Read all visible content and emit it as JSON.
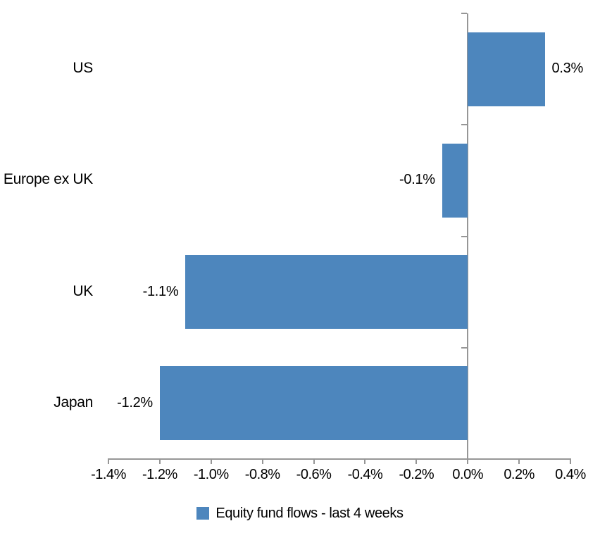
{
  "chart_data": {
    "type": "bar",
    "orientation": "horizontal",
    "title": "",
    "categories": [
      "US",
      "Europe ex UK",
      "UK",
      "Japan"
    ],
    "series": [
      {
        "name": "Equity fund flows - last 4 weeks",
        "values": [
          0.3,
          -0.1,
          -1.1,
          -1.2
        ],
        "data_labels": [
          "0.3%",
          "-0.1%",
          "-1.1%",
          "-1.2%"
        ]
      }
    ],
    "xlabel": "",
    "ylabel": "",
    "xlim": [
      -1.4,
      0.4
    ],
    "x_tick_values": [
      -1.4,
      -1.2,
      -1.0,
      -0.8,
      -0.6,
      -0.4,
      -0.2,
      0.0,
      0.2,
      0.4
    ],
    "x_tick_labels": [
      "-1.4%",
      "-1.2%",
      "-1.0%",
      "-0.8%",
      "-0.6%",
      "-0.4%",
      "-0.2%",
      "0.0%",
      "0.2%",
      "0.4%"
    ],
    "grid": false,
    "legend_position": "bottom",
    "bar_color": "#4D86BD",
    "axis_color": "#969696",
    "text_color": "#000000"
  },
  "legend": {
    "label": "Equity fund flows - last 4 weeks",
    "marker": "square-icon",
    "marker_color": "#4D86BD"
  }
}
